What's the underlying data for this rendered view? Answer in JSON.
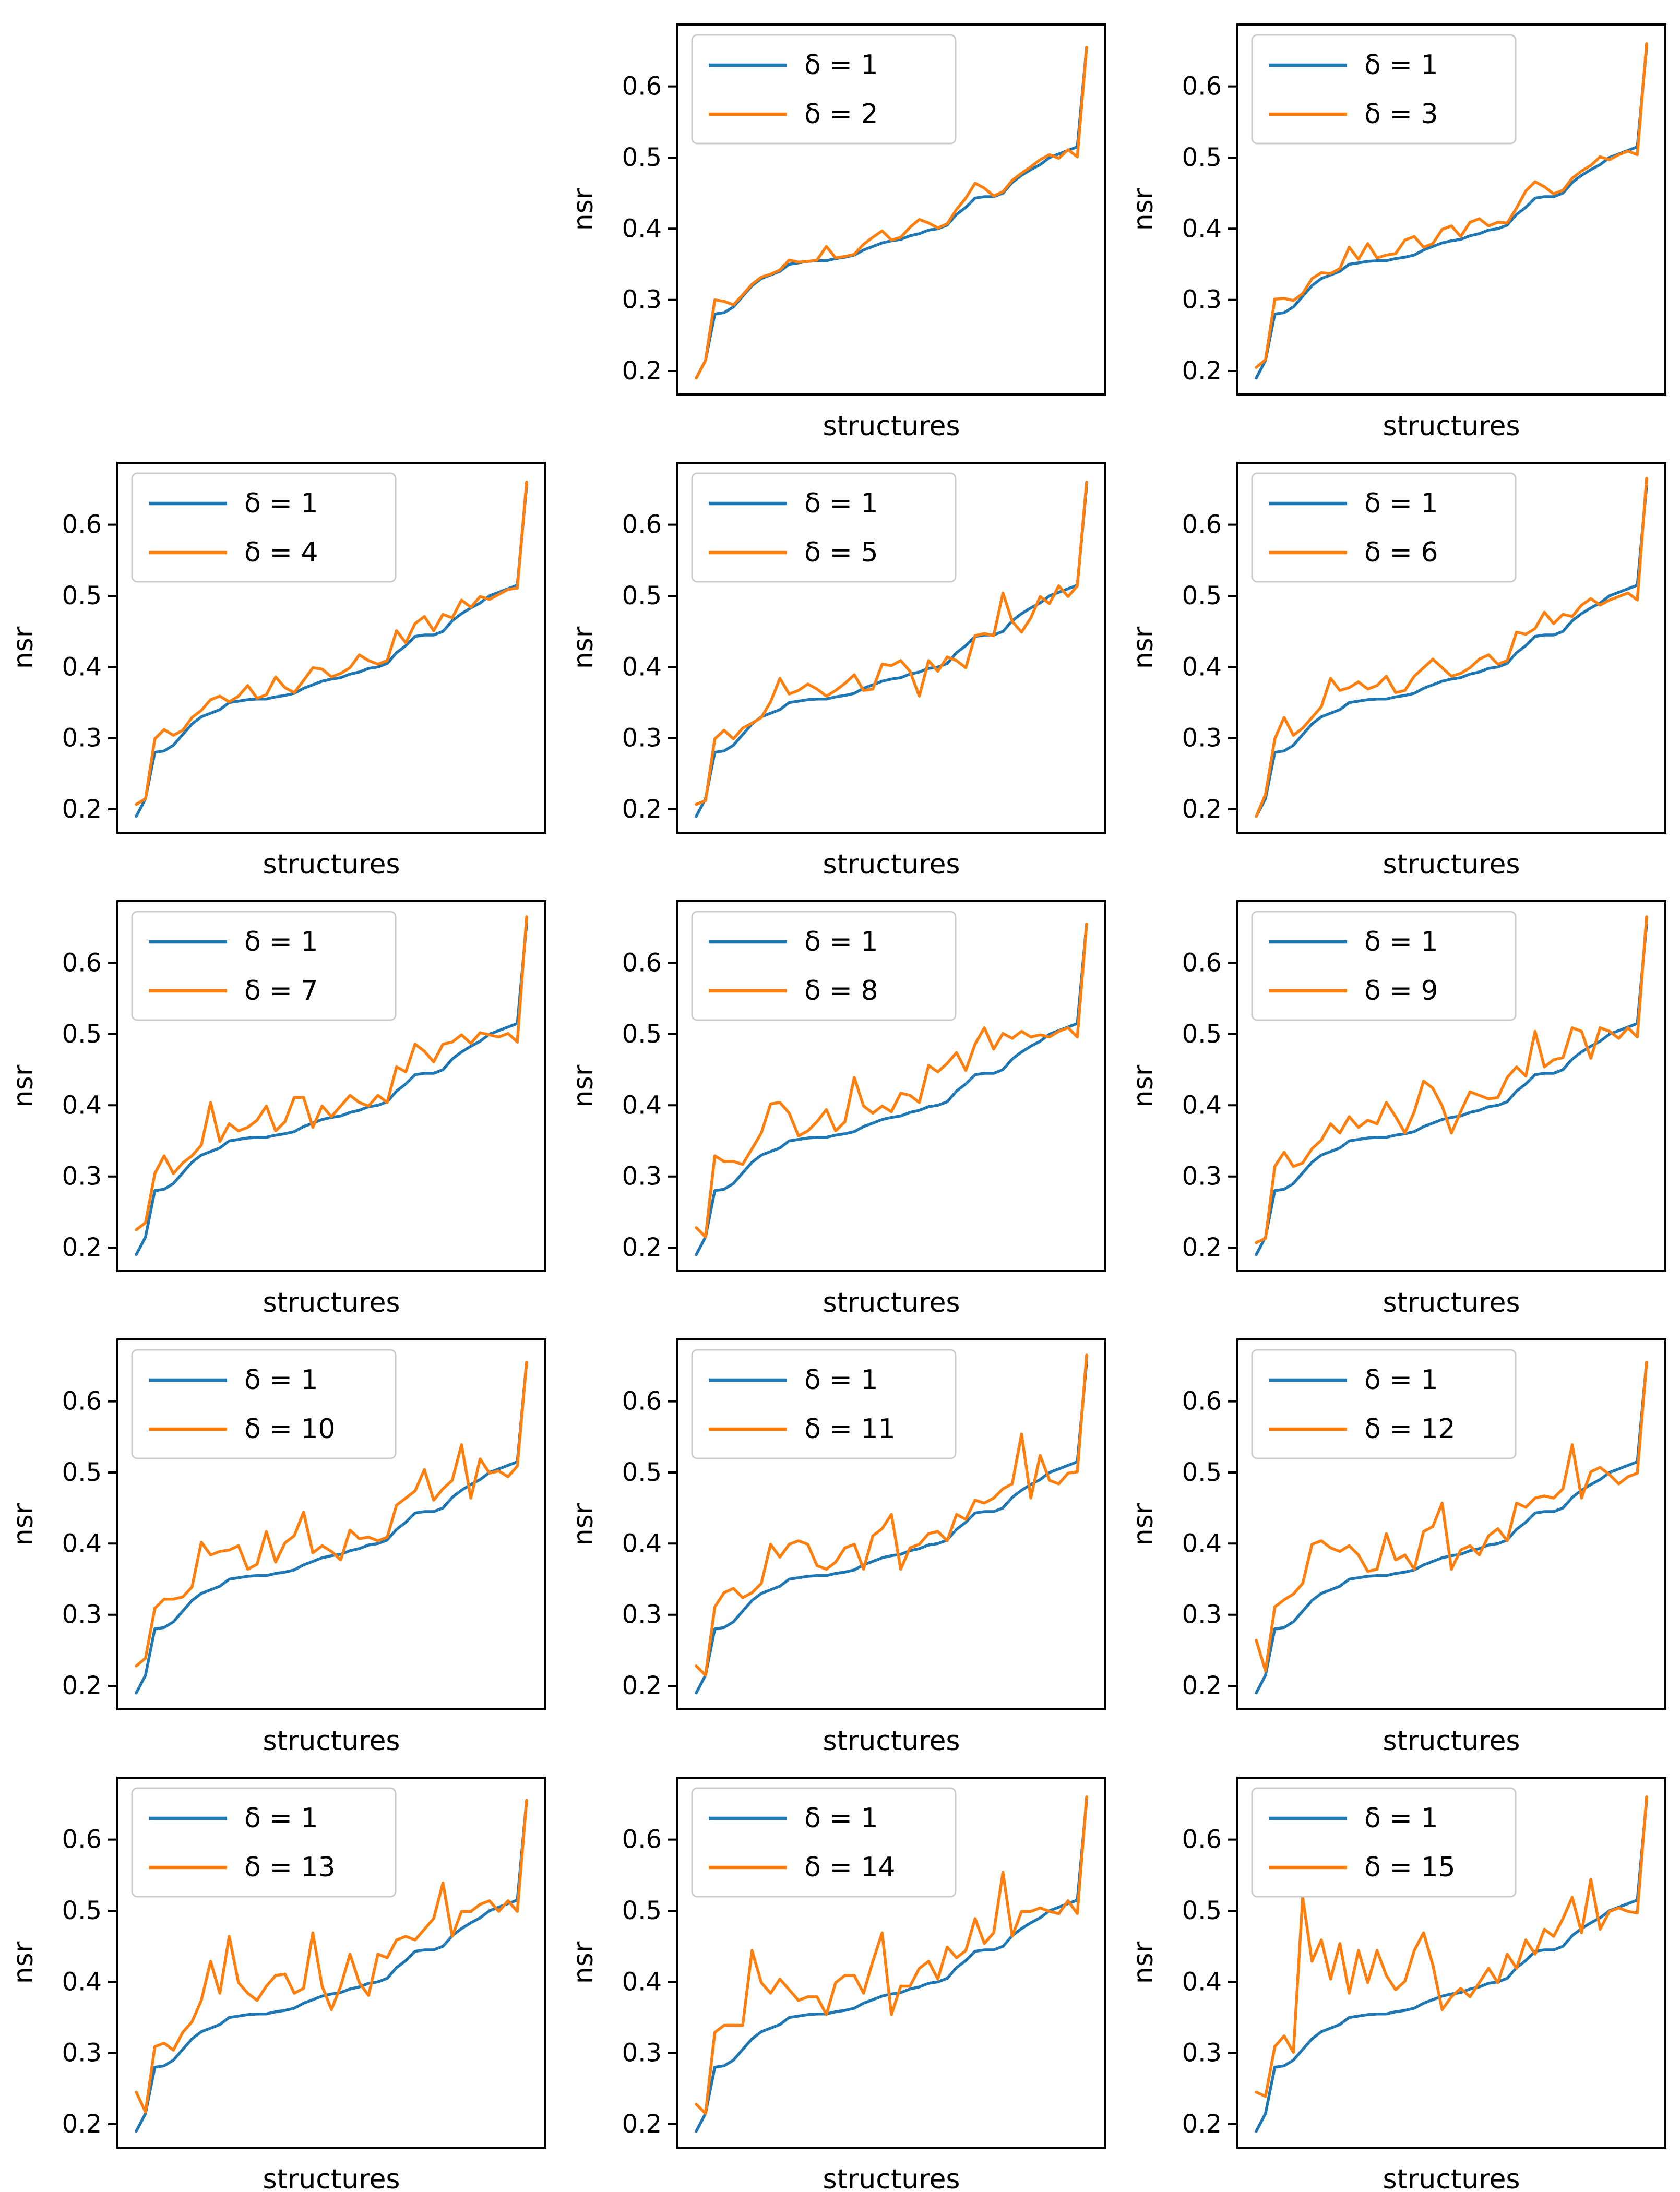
{
  "figure": {
    "background": "#ffffff",
    "text_color": "#000000",
    "spine_color": "#000000",
    "legend_border_color": "#cccccc"
  },
  "chart_data": {
    "type": "line",
    "grid": {
      "rows": 5,
      "cols": 3,
      "first_cell_empty": true
    },
    "xlabel": "structures",
    "ylabel": "nsr",
    "yticks": [
      "0.2",
      "0.3",
      "0.4",
      "0.5",
      "0.6"
    ],
    "ytick_values": [
      0.2,
      0.3,
      0.4,
      0.5,
      0.6
    ],
    "ylim": [
      0.167,
      0.687
    ],
    "x_points": 43,
    "legend_position": "upper left",
    "baseline": {
      "name": "δ = 1",
      "color": "#1f77b4",
      "values": [
        0.19,
        0.215,
        0.28,
        0.282,
        0.29,
        0.305,
        0.32,
        0.33,
        0.335,
        0.34,
        0.35,
        0.352,
        0.354,
        0.355,
        0.355,
        0.358,
        0.36,
        0.363,
        0.37,
        0.375,
        0.38,
        0.383,
        0.385,
        0.39,
        0.393,
        0.398,
        0.4,
        0.405,
        0.42,
        0.43,
        0.443,
        0.445,
        0.445,
        0.45,
        0.465,
        0.475,
        0.483,
        0.49,
        0.5,
        0.505,
        0.51,
        0.515,
        0.655
      ]
    },
    "variant_color": "#ff7f0e",
    "subplots": [
      {
        "name": "δ = 2",
        "values": [
          0.19,
          0.215,
          0.3,
          0.298,
          0.293,
          0.307,
          0.322,
          0.332,
          0.336,
          0.342,
          0.356,
          0.353,
          0.354,
          0.356,
          0.375,
          0.359,
          0.361,
          0.364,
          0.378,
          0.388,
          0.397,
          0.384,
          0.388,
          0.402,
          0.413,
          0.408,
          0.401,
          0.407,
          0.427,
          0.443,
          0.464,
          0.457,
          0.446,
          0.452,
          0.468,
          0.478,
          0.487,
          0.497,
          0.504,
          0.499,
          0.511,
          0.501,
          0.655
        ]
      },
      {
        "name": "δ = 3",
        "values": [
          0.205,
          0.216,
          0.301,
          0.302,
          0.299,
          0.309,
          0.33,
          0.338,
          0.337,
          0.344,
          0.374,
          0.357,
          0.379,
          0.359,
          0.363,
          0.365,
          0.384,
          0.389,
          0.374,
          0.379,
          0.399,
          0.404,
          0.389,
          0.409,
          0.414,
          0.404,
          0.409,
          0.408,
          0.429,
          0.453,
          0.466,
          0.459,
          0.449,
          0.454,
          0.471,
          0.481,
          0.489,
          0.501,
          0.497,
          0.504,
          0.509,
          0.504,
          0.66
        ]
      },
      {
        "name": "δ = 4",
        "values": [
          0.207,
          0.215,
          0.299,
          0.312,
          0.304,
          0.311,
          0.329,
          0.339,
          0.354,
          0.359,
          0.351,
          0.359,
          0.374,
          0.356,
          0.361,
          0.386,
          0.371,
          0.364,
          0.381,
          0.399,
          0.397,
          0.386,
          0.391,
          0.399,
          0.417,
          0.409,
          0.404,
          0.409,
          0.451,
          0.434,
          0.461,
          0.471,
          0.451,
          0.474,
          0.469,
          0.494,
          0.484,
          0.499,
          0.495,
          0.502,
          0.509,
          0.511,
          0.66
        ]
      },
      {
        "name": "δ = 5",
        "values": [
          0.207,
          0.212,
          0.299,
          0.311,
          0.299,
          0.314,
          0.321,
          0.329,
          0.351,
          0.384,
          0.362,
          0.367,
          0.376,
          0.369,
          0.359,
          0.367,
          0.377,
          0.389,
          0.367,
          0.369,
          0.404,
          0.402,
          0.409,
          0.394,
          0.359,
          0.409,
          0.394,
          0.414,
          0.409,
          0.399,
          0.444,
          0.447,
          0.444,
          0.504,
          0.464,
          0.449,
          0.469,
          0.499,
          0.489,
          0.514,
          0.499,
          0.514,
          0.66
        ]
      },
      {
        "name": "δ = 6",
        "values": [
          0.19,
          0.221,
          0.299,
          0.329,
          0.304,
          0.314,
          0.329,
          0.344,
          0.384,
          0.367,
          0.371,
          0.379,
          0.369,
          0.374,
          0.387,
          0.364,
          0.367,
          0.387,
          0.399,
          0.411,
          0.399,
          0.387,
          0.391,
          0.399,
          0.411,
          0.417,
          0.404,
          0.409,
          0.449,
          0.446,
          0.454,
          0.477,
          0.461,
          0.474,
          0.471,
          0.487,
          0.496,
          0.487,
          0.494,
          0.499,
          0.504,
          0.494,
          0.665
        ]
      },
      {
        "name": "δ = 7",
        "values": [
          0.225,
          0.235,
          0.304,
          0.329,
          0.304,
          0.319,
          0.329,
          0.344,
          0.404,
          0.349,
          0.374,
          0.364,
          0.369,
          0.379,
          0.399,
          0.364,
          0.377,
          0.411,
          0.411,
          0.369,
          0.399,
          0.384,
          0.399,
          0.414,
          0.404,
          0.399,
          0.414,
          0.404,
          0.454,
          0.447,
          0.486,
          0.476,
          0.461,
          0.486,
          0.489,
          0.499,
          0.487,
          0.502,
          0.499,
          0.496,
          0.501,
          0.489,
          0.665
        ]
      },
      {
        "name": "δ = 8",
        "values": [
          0.228,
          0.215,
          0.329,
          0.321,
          0.321,
          0.317,
          0.339,
          0.361,
          0.402,
          0.404,
          0.389,
          0.357,
          0.364,
          0.377,
          0.394,
          0.364,
          0.377,
          0.439,
          0.399,
          0.389,
          0.399,
          0.391,
          0.417,
          0.414,
          0.404,
          0.456,
          0.447,
          0.459,
          0.474,
          0.449,
          0.486,
          0.509,
          0.479,
          0.501,
          0.494,
          0.504,
          0.496,
          0.499,
          0.496,
          0.504,
          0.509,
          0.496,
          0.655
        ]
      },
      {
        "name": "δ = 9",
        "values": [
          0.207,
          0.213,
          0.314,
          0.334,
          0.314,
          0.319,
          0.339,
          0.351,
          0.374,
          0.361,
          0.384,
          0.369,
          0.379,
          0.374,
          0.404,
          0.384,
          0.361,
          0.391,
          0.434,
          0.424,
          0.399,
          0.361,
          0.391,
          0.419,
          0.414,
          0.409,
          0.411,
          0.439,
          0.454,
          0.441,
          0.504,
          0.454,
          0.464,
          0.467,
          0.509,
          0.504,
          0.466,
          0.509,
          0.504,
          0.494,
          0.509,
          0.496,
          0.665
        ]
      },
      {
        "name": "δ = 10",
        "values": [
          0.228,
          0.239,
          0.309,
          0.322,
          0.322,
          0.325,
          0.339,
          0.402,
          0.384,
          0.389,
          0.391,
          0.397,
          0.364,
          0.371,
          0.417,
          0.374,
          0.401,
          0.411,
          0.444,
          0.387,
          0.397,
          0.389,
          0.377,
          0.419,
          0.407,
          0.409,
          0.404,
          0.409,
          0.454,
          0.464,
          0.474,
          0.504,
          0.461,
          0.477,
          0.489,
          0.539,
          0.464,
          0.519,
          0.499,
          0.502,
          0.494,
          0.509,
          0.655
        ]
      },
      {
        "name": "δ = 11",
        "values": [
          0.228,
          0.215,
          0.311,
          0.331,
          0.337,
          0.324,
          0.331,
          0.344,
          0.399,
          0.381,
          0.399,
          0.404,
          0.399,
          0.369,
          0.364,
          0.374,
          0.394,
          0.399,
          0.364,
          0.411,
          0.421,
          0.441,
          0.364,
          0.394,
          0.399,
          0.414,
          0.417,
          0.404,
          0.441,
          0.434,
          0.461,
          0.457,
          0.464,
          0.477,
          0.484,
          0.554,
          0.464,
          0.524,
          0.489,
          0.484,
          0.499,
          0.501,
          0.665
        ]
      },
      {
        "name": "δ = 12",
        "values": [
          0.264,
          0.221,
          0.311,
          0.321,
          0.329,
          0.344,
          0.399,
          0.404,
          0.394,
          0.389,
          0.397,
          0.384,
          0.361,
          0.364,
          0.414,
          0.377,
          0.384,
          0.364,
          0.417,
          0.424,
          0.457,
          0.364,
          0.391,
          0.397,
          0.384,
          0.411,
          0.421,
          0.404,
          0.457,
          0.451,
          0.464,
          0.467,
          0.464,
          0.477,
          0.539,
          0.464,
          0.501,
          0.507,
          0.497,
          0.484,
          0.494,
          0.499,
          0.655
        ]
      },
      {
        "name": "δ = 13",
        "values": [
          0.245,
          0.217,
          0.309,
          0.314,
          0.304,
          0.329,
          0.344,
          0.374,
          0.429,
          0.384,
          0.464,
          0.399,
          0.384,
          0.374,
          0.394,
          0.409,
          0.411,
          0.384,
          0.391,
          0.469,
          0.394,
          0.361,
          0.394,
          0.439,
          0.399,
          0.381,
          0.439,
          0.434,
          0.459,
          0.464,
          0.459,
          0.474,
          0.489,
          0.539,
          0.464,
          0.499,
          0.499,
          0.509,
          0.514,
          0.499,
          0.514,
          0.499,
          0.655
        ]
      },
      {
        "name": "δ = 14",
        "values": [
          0.228,
          0.215,
          0.329,
          0.339,
          0.339,
          0.339,
          0.444,
          0.399,
          0.384,
          0.404,
          0.389,
          0.374,
          0.379,
          0.379,
          0.354,
          0.399,
          0.409,
          0.409,
          0.384,
          0.429,
          0.469,
          0.354,
          0.394,
          0.394,
          0.419,
          0.429,
          0.404,
          0.449,
          0.434,
          0.444,
          0.489,
          0.454,
          0.469,
          0.554,
          0.464,
          0.499,
          0.499,
          0.504,
          0.499,
          0.496,
          0.514,
          0.496,
          0.66
        ]
      },
      {
        "name": "δ = 15",
        "values": [
          0.245,
          0.239,
          0.309,
          0.324,
          0.301,
          0.519,
          0.429,
          0.459,
          0.404,
          0.454,
          0.384,
          0.444,
          0.399,
          0.444,
          0.409,
          0.389,
          0.401,
          0.444,
          0.469,
          0.424,
          0.361,
          0.379,
          0.391,
          0.379,
          0.399,
          0.419,
          0.399,
          0.439,
          0.419,
          0.459,
          0.439,
          0.474,
          0.464,
          0.489,
          0.519,
          0.469,
          0.544,
          0.474,
          0.499,
          0.504,
          0.499,
          0.497,
          0.66
        ]
      }
    ]
  }
}
